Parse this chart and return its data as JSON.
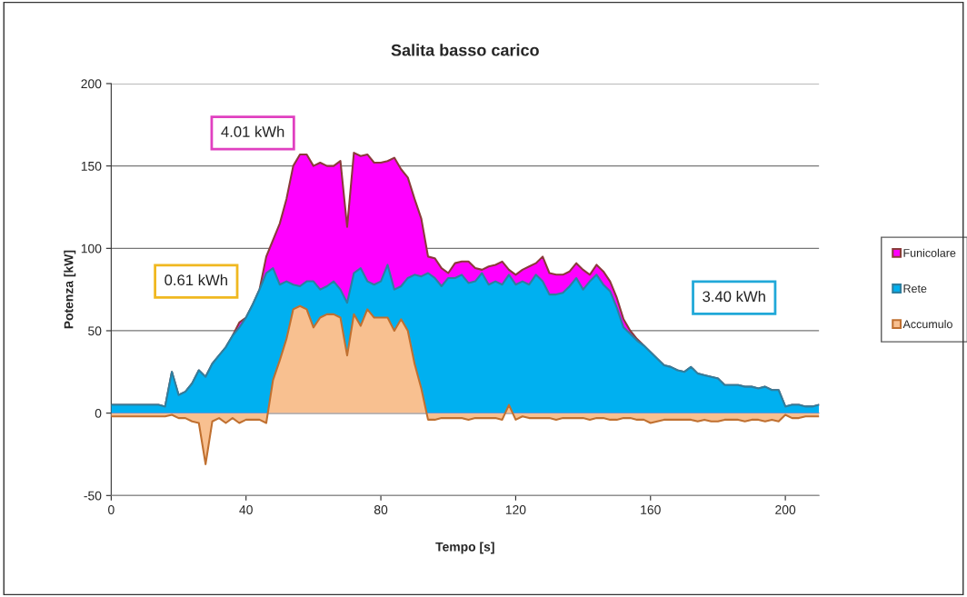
{
  "chart_data": {
    "type": "area",
    "title": "Salita basso carico",
    "xlabel": "Tempo [s]",
    "ylabel": "Potenza [kW]",
    "x": [
      0,
      2,
      4,
      6,
      8,
      10,
      12,
      14,
      16,
      18,
      20,
      22,
      24,
      26,
      28,
      30,
      32,
      34,
      36,
      38,
      40,
      42,
      44,
      46,
      48,
      50,
      52,
      54,
      56,
      58,
      60,
      62,
      64,
      66,
      68,
      70,
      72,
      74,
      76,
      78,
      80,
      82,
      84,
      86,
      88,
      90,
      92,
      94,
      96,
      98,
      100,
      102,
      104,
      106,
      108,
      110,
      112,
      114,
      116,
      118,
      120,
      122,
      124,
      126,
      128,
      130,
      132,
      134,
      136,
      138,
      140,
      142,
      144,
      146,
      148,
      150,
      152,
      154,
      156,
      158,
      160,
      162,
      164,
      166,
      168,
      170,
      172,
      174,
      176,
      178,
      180,
      182,
      184,
      186,
      188,
      190,
      192,
      194,
      196,
      198,
      200,
      202,
      204,
      206,
      208,
      210
    ],
    "series": [
      {
        "name": "Funicolare",
        "color": "#ff00ff",
        "values": [
          5,
          5,
          5,
          5,
          5,
          5,
          5,
          5,
          4,
          25,
          11,
          13,
          18,
          26,
          22,
          30,
          35,
          40,
          47,
          55,
          58,
          66,
          75,
          95,
          105,
          115,
          130,
          150,
          157,
          157,
          150,
          152,
          150,
          150,
          153,
          113,
          158,
          156,
          157,
          152,
          152,
          153,
          155,
          148,
          143,
          130,
          118,
          95,
          94,
          88,
          85,
          91,
          92,
          92,
          88,
          87,
          89,
          90,
          92,
          87,
          84,
          87,
          89,
          91,
          95,
          85,
          84,
          84,
          86,
          91,
          87,
          84,
          90,
          86,
          80,
          70,
          57,
          50,
          45,
          41,
          37,
          33,
          29,
          28,
          26,
          25,
          28,
          24,
          23,
          22,
          21,
          17,
          17,
          17,
          16,
          16,
          15,
          16,
          14,
          14,
          4,
          5,
          5,
          4,
          4,
          5
        ]
      },
      {
        "name": "Rete",
        "color": "#00b0f0",
        "values": [
          5,
          5,
          5,
          5,
          5,
          5,
          5,
          5,
          4,
          25,
          11,
          13,
          18,
          26,
          22,
          30,
          35,
          40,
          47,
          52,
          58,
          66,
          75,
          85,
          88,
          78,
          80,
          78,
          77,
          80,
          80,
          75,
          77,
          80,
          75,
          67,
          85,
          88,
          80,
          78,
          80,
          90,
          75,
          77,
          82,
          84,
          83,
          85,
          82,
          77,
          82,
          82,
          84,
          79,
          80,
          85,
          78,
          80,
          78,
          84,
          78,
          80,
          78,
          84,
          80,
          72,
          72,
          73,
          77,
          82,
          75,
          80,
          84,
          78,
          74,
          64,
          52,
          48,
          44,
          41,
          37,
          33,
          29,
          28,
          26,
          25,
          28,
          24,
          23,
          22,
          21,
          17,
          17,
          17,
          16,
          16,
          15,
          16,
          14,
          14,
          4,
          5,
          5,
          4,
          4,
          5
        ]
      },
      {
        "name": "Accumulo",
        "color": "#f8c090",
        "values": [
          -2,
          -2,
          -2,
          -2,
          -2,
          -2,
          -2,
          -2,
          -2,
          -1,
          -3,
          -3,
          -5,
          -6,
          -31,
          -5,
          -3,
          -6,
          -3,
          -6,
          -4,
          -4,
          -4,
          -6,
          20,
          32,
          45,
          63,
          65,
          63,
          52,
          58,
          60,
          60,
          58,
          35,
          60,
          53,
          63,
          58,
          58,
          58,
          50,
          57,
          50,
          30,
          15,
          -4,
          -4,
          -3,
          -3,
          -3,
          -3,
          -4,
          -3,
          -3,
          -3,
          -3,
          -4,
          5,
          -4,
          -2,
          -3,
          -3,
          -3,
          -3,
          -4,
          -3,
          -3,
          -3,
          -3,
          -4,
          -3,
          -3,
          -4,
          -4,
          -3,
          -3,
          -4,
          -4,
          -6,
          -5,
          -4,
          -4,
          -4,
          -4,
          -4,
          -5,
          -4,
          -5,
          -5,
          -4,
          -4,
          -4,
          -5,
          -4,
          -4,
          -5,
          -4,
          -5,
          -1,
          -3,
          -3,
          -2,
          -2,
          -2
        ]
      }
    ],
    "xlim": [
      0,
      210
    ],
    "xticks": [
      0,
      40,
      80,
      120,
      160,
      200
    ],
    "ylim": [
      -50,
      200
    ],
    "yticks": [
      -50,
      0,
      50,
      100,
      150,
      200
    ],
    "grid": "y",
    "legend": "right",
    "annotations": [
      "4.01 kWh",
      "0.61 kWh",
      "3.40 kWh"
    ]
  }
}
